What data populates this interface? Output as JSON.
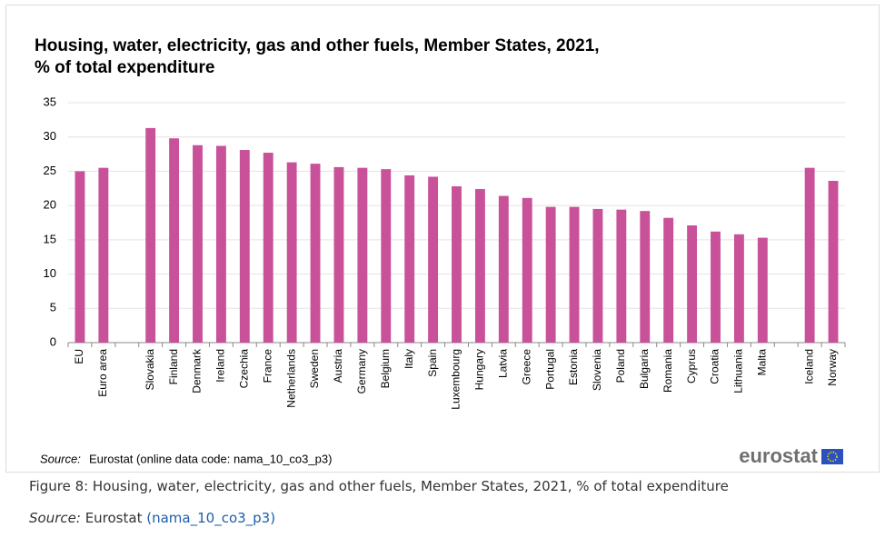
{
  "chart_data": {
    "type": "bar",
    "title": [
      "Housing, water, electricity, gas and other fuels, Member States, 2021,",
      "% of total expenditure"
    ],
    "categories": [
      "EU",
      "Euro area",
      null,
      "Slovakia",
      "Finland",
      "Denmark",
      "Ireland",
      "Czechia",
      "France",
      "Netherlands",
      "Sweden",
      "Austria",
      "Germany",
      "Belgium",
      "Italy",
      "Spain",
      "Luxembourg",
      "Hungary",
      "Latvia",
      "Greece",
      "Portugal",
      "Estonia",
      "Slovenia",
      "Poland",
      "Bulgaria",
      "Romania",
      "Cyprus",
      "Croatia",
      "Lithuania",
      "Malta",
      null,
      "Iceland",
      "Norway"
    ],
    "values": [
      25.0,
      25.5,
      null,
      31.3,
      29.8,
      28.8,
      28.7,
      28.1,
      27.7,
      26.3,
      26.1,
      25.6,
      25.5,
      25.3,
      24.4,
      24.2,
      22.8,
      22.4,
      21.4,
      21.1,
      19.8,
      19.8,
      19.5,
      19.4,
      19.2,
      18.2,
      17.1,
      16.2,
      15.8,
      15.3,
      null,
      25.5,
      23.6
    ],
    "color": "#c8519a",
    "ylim": [
      0,
      35
    ],
    "yticks": [
      0,
      5,
      10,
      15,
      20,
      25,
      30,
      35
    ],
    "grid": true,
    "source_label": "Source:",
    "source_text": "Eurostat (online data code: nama_10_co3_p3)",
    "logo": "eurostat"
  },
  "figure": {
    "caption": "Figure 8: Housing, water, electricity, gas and other fuels, Member States, 2021, % of total expenditure",
    "source_label": "Source:",
    "source_name": "Eurostat",
    "source_link": "(nama_10_co3_p3)"
  }
}
